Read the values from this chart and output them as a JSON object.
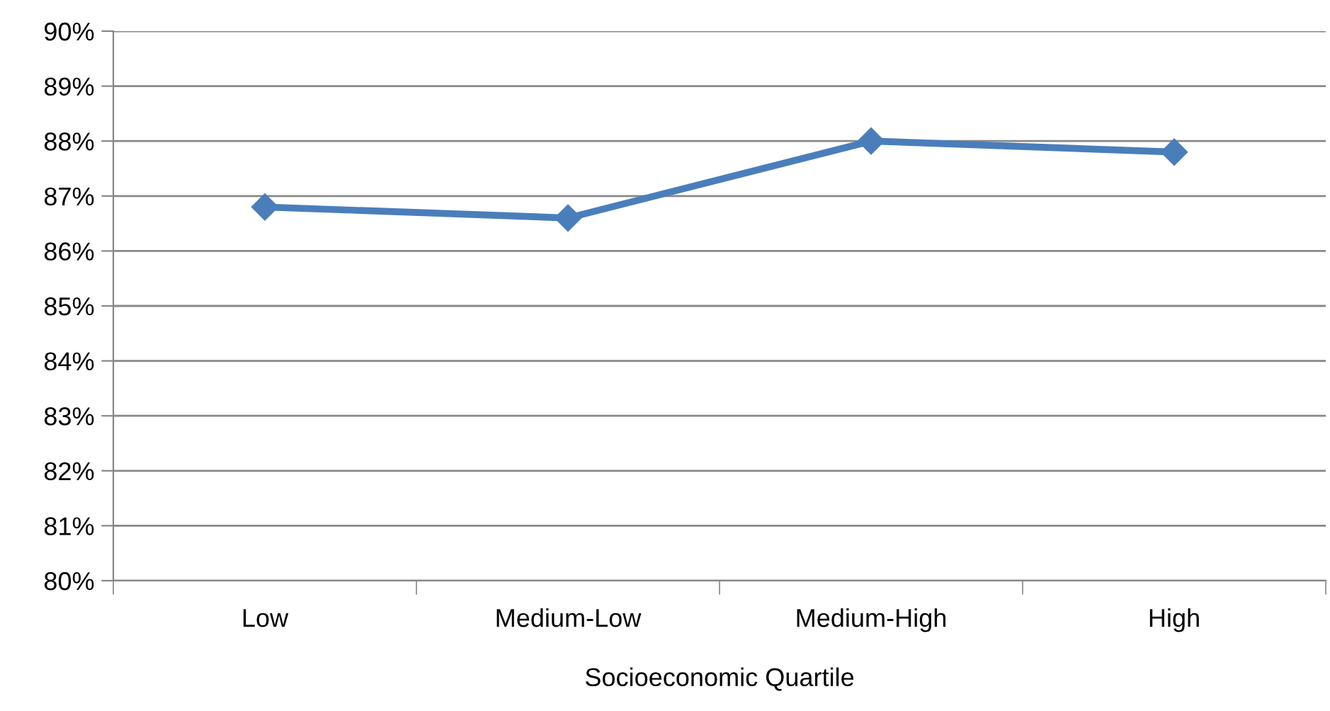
{
  "chart_data": {
    "type": "line",
    "xlabel": "Socioeconomic Quartile",
    "categories": [
      "Low",
      "Medium-Low",
      "Medium-High",
      "High"
    ],
    "series": [
      {
        "color": "#4a7ebb",
        "values": [
          86.8,
          86.6,
          88.0,
          87.8
        ]
      }
    ],
    "ylim": [
      80,
      90
    ],
    "yticks": [
      {
        "value": 80,
        "label": "80%"
      },
      {
        "value": 81,
        "label": "81%"
      },
      {
        "value": 82,
        "label": "82%"
      },
      {
        "value": 83,
        "label": "83%"
      },
      {
        "value": 84,
        "label": "84%"
      },
      {
        "value": 85,
        "label": "85%"
      },
      {
        "value": 86,
        "label": "86%"
      },
      {
        "value": 87,
        "label": "87%"
      },
      {
        "value": 88,
        "label": "88%"
      },
      {
        "value": 89,
        "label": "89%"
      },
      {
        "value": 90,
        "label": "90%"
      }
    ],
    "grid": "y",
    "marker": "diamond",
    "line_style": "solid",
    "legend": false
  }
}
